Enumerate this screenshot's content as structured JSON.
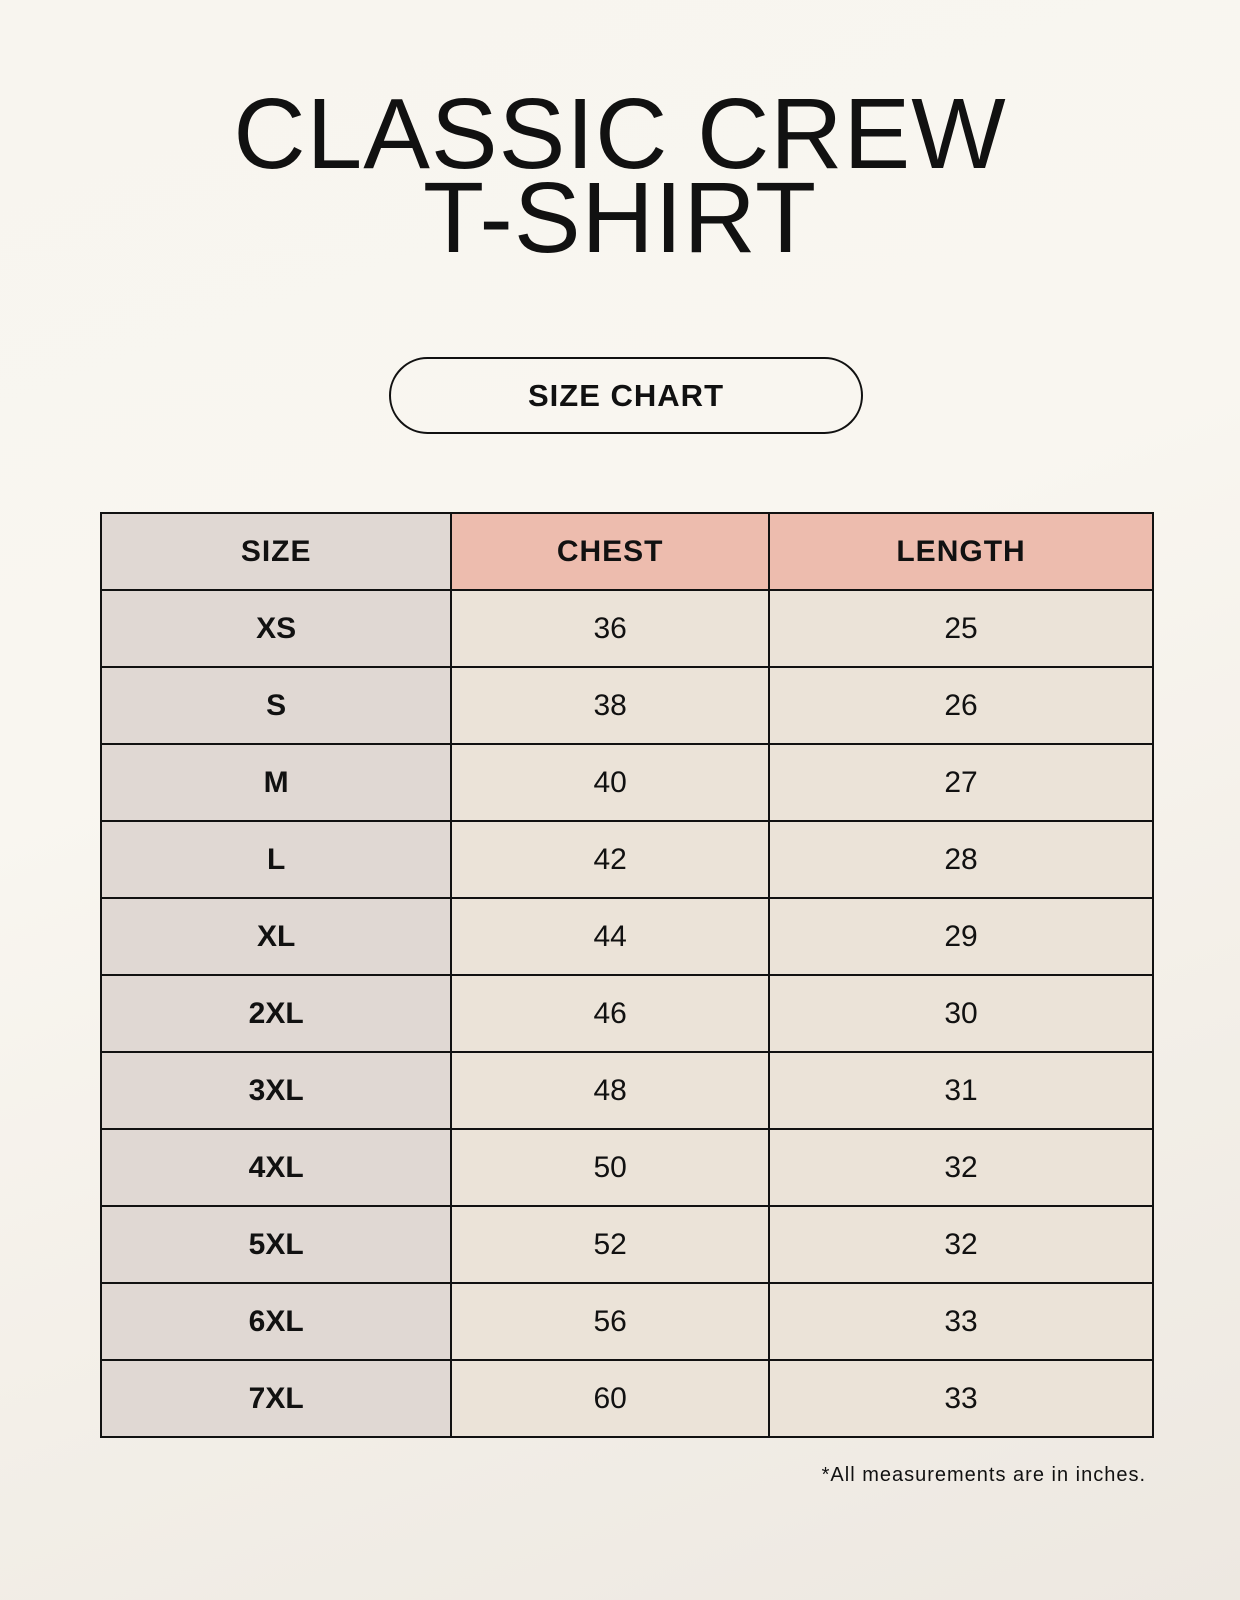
{
  "title": {
    "line1": "CLASSIC CREW",
    "line2": "T-SHIRT"
  },
  "badge": "SIZE CHART",
  "table": {
    "headers": [
      "SIZE",
      "CHEST",
      "LENGTH"
    ],
    "rows": [
      [
        "XS",
        "36",
        "25"
      ],
      [
        "S",
        "38",
        "26"
      ],
      [
        "M",
        "40",
        "27"
      ],
      [
        "L",
        "42",
        "28"
      ],
      [
        "XL",
        "44",
        "29"
      ],
      [
        "2XL",
        "46",
        "30"
      ],
      [
        "3XL",
        "48",
        "31"
      ],
      [
        "4XL",
        "50",
        "32"
      ],
      [
        "5XL",
        "52",
        "32"
      ],
      [
        "6XL",
        "56",
        "33"
      ],
      [
        "7XL",
        "60",
        "33"
      ]
    ]
  },
  "footnote": "*All measurements are in inches.",
  "colors": {
    "size_column": "#e0d8d3",
    "header_accent": "#edbcae",
    "value_cells": "#ebe3d8"
  }
}
